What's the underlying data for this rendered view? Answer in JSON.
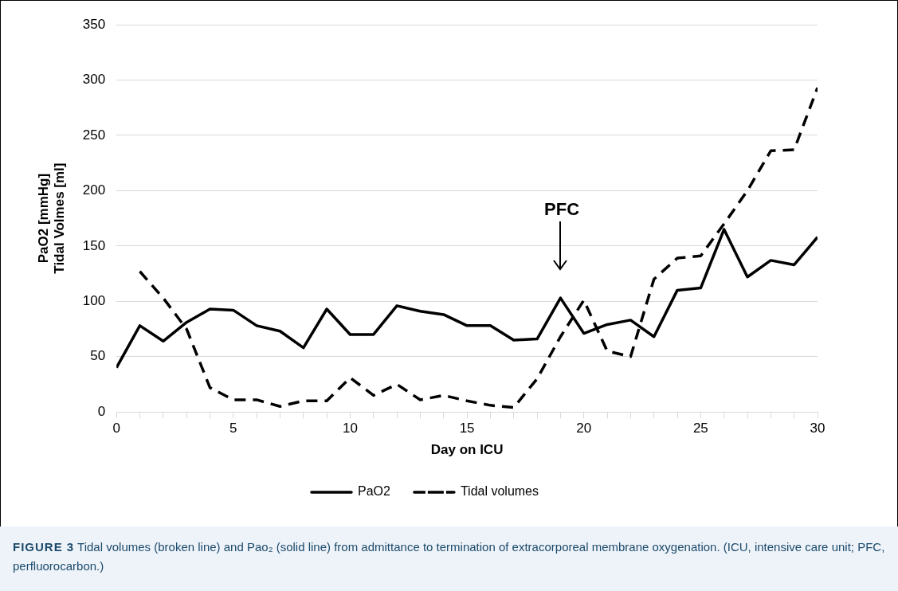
{
  "chart_data": {
    "type": "line",
    "xlabel": "Day on ICU",
    "ylabel": "PaO2 [mmHg]\nTidal Volmes [ml]",
    "x": [
      0,
      1,
      2,
      3,
      4,
      5,
      6,
      7,
      8,
      9,
      10,
      11,
      12,
      13,
      14,
      15,
      16,
      17,
      18,
      19,
      20,
      21,
      22,
      23,
      24,
      25,
      26,
      27,
      28,
      29,
      30
    ],
    "series": [
      {
        "name": "PaO2",
        "color": "#000000",
        "line_style": "solid",
        "values": [
          40,
          78,
          64,
          81,
          93,
          92,
          78,
          73,
          58,
          93,
          70,
          70,
          96,
          91,
          88,
          78,
          78,
          65,
          66,
          103,
          71,
          79,
          83,
          68,
          110,
          112,
          165,
          122,
          137,
          133,
          158
        ]
      },
      {
        "name": "Tidal volumes",
        "color": "#000000",
        "line_style": "dashed",
        "values": [
          null,
          127,
          103,
          75,
          22,
          11,
          11,
          5,
          10,
          10,
          31,
          15,
          25,
          11,
          15,
          10,
          6,
          4,
          30,
          68,
          101,
          55,
          50,
          120,
          139,
          141,
          170,
          200,
          236,
          237,
          293
        ]
      }
    ],
    "xlim": [
      0,
      30
    ],
    "xticks": [
      0,
      {
        "value": 1,
        "label": null
      },
      {
        "value": 2,
        "label": null
      },
      {
        "value": 3,
        "label": null
      },
      {
        "value": 4,
        "label": null
      },
      5,
      {
        "value": 6,
        "label": null
      },
      {
        "value": 7,
        "label": null
      },
      {
        "value": 8,
        "label": null
      },
      {
        "value": 9,
        "label": null
      },
      10,
      {
        "value": 11,
        "label": null
      },
      {
        "value": 12,
        "label": null
      },
      {
        "value": 13,
        "label": null
      },
      {
        "value": 14,
        "label": null
      },
      15,
      {
        "value": 16,
        "label": null
      },
      {
        "value": 17,
        "label": null
      },
      {
        "value": 18,
        "label": null
      },
      {
        "value": 19,
        "label": null
      },
      20,
      {
        "value": 21,
        "label": null
      },
      {
        "value": 22,
        "label": null
      },
      {
        "value": 23,
        "label": null
      },
      {
        "value": 24,
        "label": null
      },
      25,
      {
        "value": 26,
        "label": null
      },
      {
        "value": 27,
        "label": null
      },
      {
        "value": 28,
        "label": null
      },
      {
        "value": 29,
        "label": null
      },
      30
    ],
    "ylim": [
      0,
      350
    ],
    "yticks": [
      0,
      50,
      100,
      150,
      200,
      250,
      300,
      350
    ],
    "grid": "y",
    "legend": "bottom",
    "marker": "none",
    "annotations": [
      "PFC",
      "FIGURE 3 Tidal volumes (broken line) and Pao₂ (solid line) from admittance to termination of extracorporeal membrane oxygenation. (ICU, intensive care unit; PFC, perfluorocarbon.)"
    ]
  }
}
